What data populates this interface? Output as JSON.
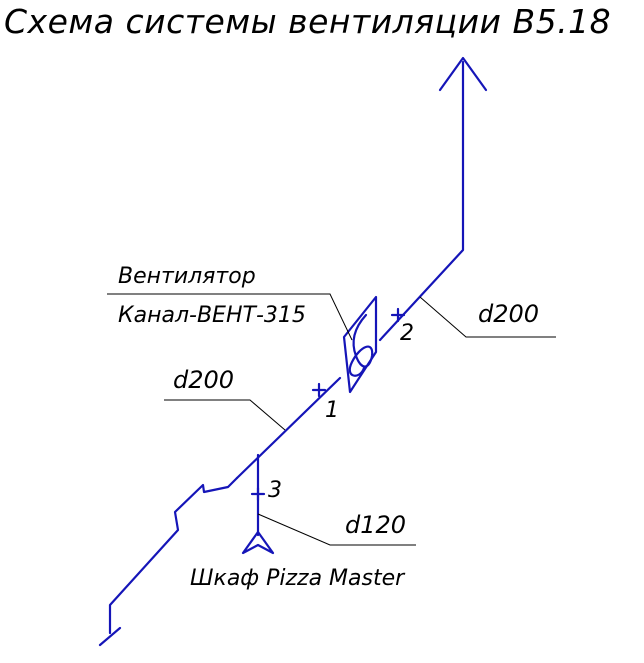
{
  "title": "Схема системы вентиляции В5.18",
  "fan": {
    "label_line1": "Вентилятор",
    "label_line2": "Канал-ВЕНТ-315"
  },
  "ducts": {
    "main_upper_diameter": "d200",
    "main_lower_diameter": "d200",
    "branch_diameter": "d120"
  },
  "points": {
    "p1": "1",
    "p2": "2",
    "p3": "3"
  },
  "equipment": {
    "name": "Шкаф Pizza Master"
  },
  "colors": {
    "duct": "#1515b8",
    "leader": "#000000"
  }
}
